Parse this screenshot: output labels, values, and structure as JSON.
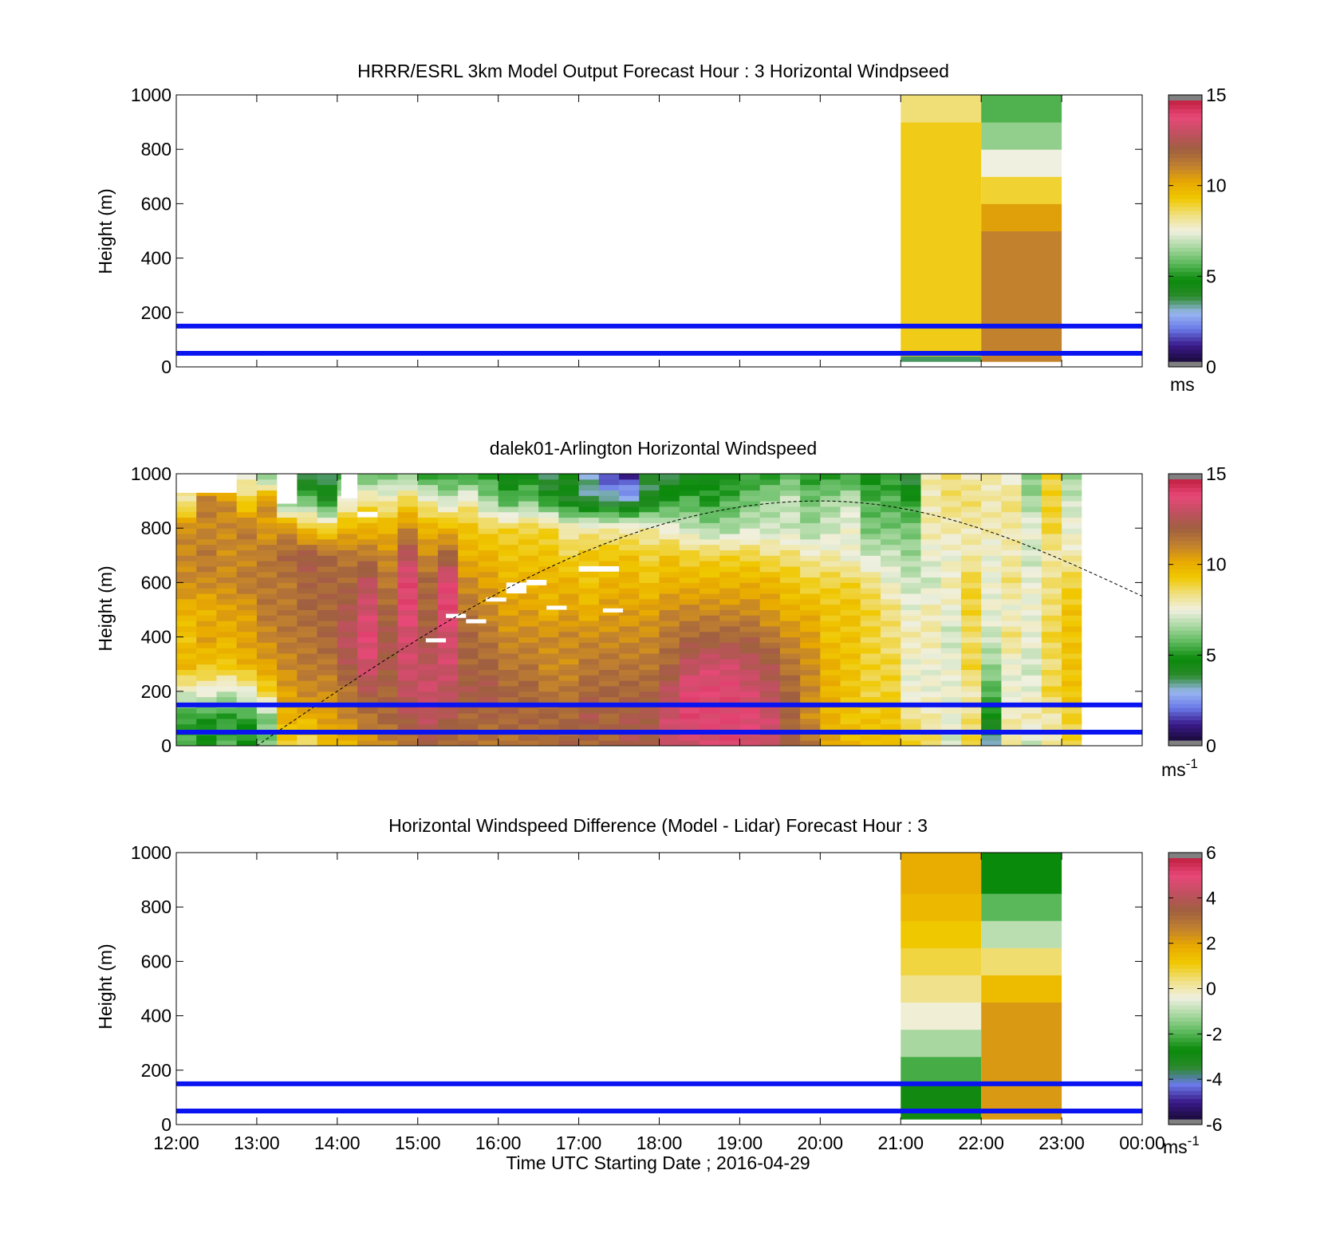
{
  "figure": {
    "xlabel": "Time UTC  Starting Date ; 2016-04-29",
    "x_ticks": [
      "12:00",
      "13:00",
      "14:00",
      "15:00",
      "16:00",
      "17:00",
      "18:00",
      "19:00",
      "20:00",
      "21:00",
      "22:00",
      "23:00",
      "00:00"
    ],
    "y_ticks": [
      "0",
      "200",
      "400",
      "600",
      "800",
      "1000"
    ],
    "ylabel": "Height (m)",
    "reference_heights_m": [
      50,
      150
    ],
    "reference_line_color": "#0a14f0"
  },
  "colormaps": {
    "speed": [
      "#1a0a3a",
      "#3a1a8a",
      "#6a7ae8",
      "#9ab8f0",
      "#2a8a2a",
      "#0a8a0a",
      "#5ab85a",
      "#a8d8a0",
      "#f0f0e0",
      "#f0e080",
      "#f0c800",
      "#e8a800",
      "#c08030",
      "#a06040",
      "#c05060",
      "#e84878",
      "#c02040"
    ],
    "diff": [
      "#1a0a3a",
      "#3a1a8a",
      "#6a7ae8",
      "#2a8a2a",
      "#0a8a0a",
      "#5ab85a",
      "#a8d8a0",
      "#f0f0e0",
      "#f0e080",
      "#f0c800",
      "#e8a800",
      "#c08030",
      "#a06040",
      "#c05060",
      "#e84878",
      "#c02040"
    ]
  },
  "chart_data": [
    {
      "type": "heatmap",
      "title": "HRRR/ESRL 3km Model Output   Forecast Hour : 3 Horizontal Windpseed",
      "xlabel": "",
      "ylabel": "Height (m)",
      "xlim": [
        12,
        24
      ],
      "ylim": [
        0,
        1000
      ],
      "colorbar": {
        "ticks": [
          "0",
          "5",
          "10",
          "15"
        ],
        "range": [
          0,
          15
        ],
        "unit": "ms",
        "unit_sup": ""
      },
      "columns": [
        {
          "x_start": 21,
          "x_end": 22,
          "cells": [
            {
              "h0": 20,
              "h1": 40,
              "v": 3.5
            },
            {
              "h0": 40,
              "h1": 120,
              "v": 9.2
            },
            {
              "h0": 120,
              "h1": 900,
              "v": 9.2
            },
            {
              "h0": 900,
              "h1": 1000,
              "v": 8.5
            }
          ]
        },
        {
          "x_start": 22,
          "x_end": 23,
          "cells": [
            {
              "h0": 20,
              "h1": 500,
              "v": 11.2
            },
            {
              "h0": 500,
              "h1": 600,
              "v": 10.5
            },
            {
              "h0": 600,
              "h1": 700,
              "v": 9.0
            },
            {
              "h0": 700,
              "h1": 800,
              "v": 7.5
            },
            {
              "h0": 800,
              "h1": 900,
              "v": 6.3
            },
            {
              "h0": 900,
              "h1": 1000,
              "v": 5.5
            }
          ]
        }
      ]
    },
    {
      "type": "heatmap",
      "title": "dalek01-Arlington  Horizontal Windspeed",
      "xlabel": "",
      "ylabel": "Height (m)",
      "xlim": [
        12,
        24
      ],
      "ylim": [
        0,
        1000
      ],
      "colorbar": {
        "ticks": [
          "0",
          "5",
          "10",
          "15"
        ],
        "range": [
          0,
          15
        ],
        "unit": "ms",
        "unit_sup": "-1"
      },
      "time_step_h": 0.25,
      "x_start": 12.0,
      "heights": [
        0,
        100,
        200,
        300,
        400,
        500,
        600,
        700,
        800,
        900,
        1000
      ],
      "profiles": [
        [
          5.5,
          5.0,
          7.5,
          10.0,
          9.5,
          10.0,
          11.0,
          11.0,
          11.0,
          8.0,
          10.0
        ],
        [
          5.0,
          4.8,
          7.5,
          9.5,
          10.5,
          10.0,
          11.0,
          11.5,
          11.0,
          11.5,
          7.5
        ],
        [
          5.5,
          5.0,
          7.0,
          9.5,
          10.0,
          10.5,
          11.0,
          11.0,
          11.0,
          11.0,
          7.5
        ],
        [
          5.0,
          5.0,
          7.5,
          10.0,
          10.5,
          10.5,
          11.5,
          11.0,
          11.5,
          9.0,
          7.5
        ],
        [
          6.0,
          6.0,
          9.0,
          10.5,
          11.0,
          11.5,
          11.5,
          11.5,
          10.5,
          11.0,
          5.5
        ],
        [
          9.0,
          10.0,
          10.5,
          11.0,
          11.5,
          11.5,
          11.5,
          12.0,
          11.0,
          5.5,
          5.0
        ],
        [
          8.5,
          10.0,
          11.0,
          11.5,
          11.5,
          12.0,
          12.0,
          12.5,
          9.5,
          6.0,
          3.0
        ],
        [
          9.5,
          10.5,
          11.0,
          11.5,
          12.0,
          12.0,
          12.0,
          12.0,
          9.0,
          4.5,
          3.5
        ],
        [
          10.0,
          11.0,
          11.5,
          12.5,
          13.0,
          12.5,
          12.0,
          11.5,
          10.0,
          7.5,
          5.0
        ],
        [
          10.5,
          11.5,
          12.5,
          13.5,
          14.0,
          13.5,
          13.0,
          11.5,
          10.0,
          8.5,
          5.5
        ],
        [
          11.0,
          12.0,
          12.0,
          12.5,
          12.5,
          12.0,
          11.5,
          11.0,
          10.0,
          8.0,
          6.0
        ],
        [
          11.5,
          12.5,
          13.0,
          13.5,
          13.5,
          14.0,
          14.0,
          13.0,
          11.0,
          9.0,
          6.0
        ],
        [
          12.0,
          13.0,
          13.5,
          13.0,
          12.5,
          12.0,
          12.0,
          11.0,
          10.0,
          8.0,
          5.0
        ],
        [
          12.0,
          12.5,
          13.0,
          13.5,
          13.5,
          14.0,
          14.0,
          12.0,
          10.0,
          7.0,
          5.0
        ],
        [
          11.5,
          12.0,
          12.5,
          12.0,
          12.0,
          11.5,
          11.0,
          10.0,
          9.5,
          8.0,
          5.0
        ],
        [
          11.5,
          12.0,
          12.5,
          12.0,
          11.5,
          11.0,
          10.5,
          10.0,
          9.0,
          6.5,
          5.0
        ],
        [
          11.5,
          12.0,
          12.0,
          11.5,
          11.0,
          10.5,
          10.0,
          9.5,
          9.0,
          5.5,
          4.0
        ],
        [
          11.5,
          12.0,
          12.0,
          11.5,
          11.0,
          10.5,
          10.0,
          9.5,
          9.0,
          6.0,
          4.5
        ],
        [
          12.0,
          12.0,
          11.5,
          11.0,
          11.0,
          10.0,
          10.0,
          9.5,
          9.0,
          5.0,
          3.0
        ],
        [
          12.0,
          12.0,
          11.5,
          11.0,
          11.0,
          10.5,
          10.0,
          9.0,
          8.0,
          4.0,
          4.5
        ],
        [
          12.0,
          12.5,
          12.0,
          11.5,
          11.0,
          10.0,
          9.5,
          9.5,
          8.0,
          3.5,
          3.0
        ],
        [
          12.0,
          12.0,
          12.0,
          11.5,
          11.0,
          10.5,
          10.0,
          9.5,
          8.0,
          3.5,
          1.0
        ],
        [
          12.5,
          12.5,
          12.0,
          11.5,
          11.0,
          10.5,
          10.0,
          9.5,
          8.0,
          3.0,
          1.0
        ],
        [
          12.5,
          12.5,
          12.0,
          11.5,
          11.0,
          10.5,
          9.5,
          9.0,
          8.0,
          4.0,
          3.5
        ],
        [
          13.0,
          13.5,
          13.0,
          12.0,
          11.5,
          11.0,
          10.0,
          9.5,
          7.5,
          5.0,
          3.5
        ],
        [
          13.5,
          14.0,
          14.0,
          13.0,
          12.0,
          11.0,
          10.0,
          9.0,
          7.0,
          5.5,
          4.0
        ],
        [
          13.5,
          14.0,
          14.0,
          13.5,
          12.0,
          11.0,
          10.0,
          9.0,
          6.5,
          5.0,
          4.5
        ],
        [
          14.0,
          14.0,
          14.0,
          13.5,
          12.0,
          11.0,
          10.0,
          9.0,
          6.5,
          5.5,
          4.5
        ],
        [
          13.5,
          14.0,
          13.5,
          13.0,
          12.0,
          11.0,
          10.0,
          9.0,
          7.0,
          6.0,
          5.0
        ],
        [
          13.0,
          13.5,
          13.0,
          12.5,
          11.5,
          10.5,
          10.0,
          8.5,
          7.0,
          6.5,
          5.0
        ],
        [
          12.5,
          12.0,
          12.0,
          11.5,
          11.0,
          10.0,
          9.5,
          8.5,
          7.0,
          7.0,
          5.5
        ],
        [
          11.5,
          11.0,
          11.0,
          11.0,
          10.5,
          10.0,
          9.0,
          8.0,
          6.5,
          6.0,
          5.0
        ],
        [
          10.5,
          10.0,
          10.0,
          10.0,
          9.5,
          9.5,
          9.0,
          8.0,
          7.0,
          6.5,
          5.0
        ],
        [
          10.0,
          9.5,
          9.5,
          9.5,
          9.5,
          9.5,
          9.0,
          7.5,
          7.5,
          7.0,
          5.0
        ],
        [
          9.5,
          9.5,
          9.0,
          9.0,
          9.0,
          9.0,
          8.5,
          7.0,
          6.0,
          5.5,
          4.5
        ],
        [
          10.0,
          9.5,
          9.0,
          9.0,
          8.5,
          8.5,
          7.5,
          7.0,
          6.0,
          5.5,
          5.0
        ],
        [
          9.0,
          8.5,
          7.5,
          7.5,
          8.0,
          7.5,
          7.0,
          6.5,
          6.0,
          5.0,
          3.5
        ],
        [
          9.0,
          8.0,
          7.5,
          7.5,
          8.0,
          8.0,
          7.0,
          7.5,
          8.0,
          8.0,
          8.0
        ],
        [
          7.0,
          7.5,
          7.5,
          7.5,
          7.0,
          7.5,
          8.0,
          7.5,
          8.0,
          8.5,
          8.5
        ],
        [
          9.0,
          8.5,
          8.0,
          9.0,
          8.5,
          9.0,
          9.0,
          8.0,
          8.0,
          8.5,
          8.0
        ],
        [
          3.0,
          4.5,
          5.5,
          6.5,
          7.0,
          7.5,
          7.5,
          7.5,
          8.0,
          8.0,
          8.0
        ],
        [
          8.0,
          8.0,
          7.5,
          7.5,
          8.5,
          7.5,
          8.5,
          8.0,
          8.0,
          8.5,
          7.5
        ],
        [
          7.0,
          8.0,
          7.5,
          7.0,
          7.5,
          7.5,
          7.5,
          7.0,
          7.5,
          6.5,
          6.0
        ],
        [
          8.0,
          8.0,
          9.0,
          8.5,
          9.0,
          8.5,
          8.5,
          8.0,
          9.0,
          9.0,
          9.0
        ],
        [
          9.0,
          9.0,
          9.5,
          9.5,
          9.5,
          9.5,
          9.0,
          8.0,
          7.5,
          7.0,
          6.5
        ]
      ],
      "white_gaps": [
        {
          "t0": 13.25,
          "t1": 13.5,
          "h0": 890,
          "h1": 1000
        },
        {
          "t0": 12.0,
          "t1": 12.75,
          "h0": 930,
          "h1": 1000
        },
        {
          "t0": 14.05,
          "t1": 14.25,
          "h0": 910,
          "h1": 1000
        },
        {
          "t0": 14.25,
          "t1": 14.5,
          "h0": 840,
          "h1": 860
        },
        {
          "t0": 15.1,
          "t1": 15.35,
          "h0": 380,
          "h1": 395
        },
        {
          "t0": 15.35,
          "t1": 15.6,
          "h0": 470,
          "h1": 485
        },
        {
          "t0": 15.6,
          "t1": 15.85,
          "h0": 450,
          "h1": 465
        },
        {
          "t0": 15.85,
          "t1": 16.1,
          "h0": 530,
          "h1": 545
        },
        {
          "t0": 16.1,
          "t1": 16.35,
          "h0": 560,
          "h1": 600
        },
        {
          "t0": 16.35,
          "t1": 16.6,
          "h0": 590,
          "h1": 610
        },
        {
          "t0": 16.6,
          "t1": 16.85,
          "h0": 500,
          "h1": 515
        },
        {
          "t0": 17.3,
          "t1": 17.55,
          "h0": 490,
          "h1": 505
        },
        {
          "t0": 17.0,
          "t1": 17.5,
          "h0": 640,
          "h1": 660
        }
      ],
      "daytime_curve": {
        "t_start": 13.0,
        "t_peak": 20.0,
        "t_end": 24.0,
        "h_peak": 900,
        "h_end": 550
      }
    },
    {
      "type": "heatmap",
      "title": "Horizontal Windspeed Difference (Model - Lidar) Forecast Hour : 3",
      "xlabel": "Time UTC  Starting Date ; 2016-04-29",
      "ylabel": "Height (m)",
      "xlim": [
        12,
        24
      ],
      "ylim": [
        0,
        1000
      ],
      "colorbar": {
        "ticks": [
          "-6",
          "-4",
          "-2",
          "0",
          "2",
          "4",
          "6"
        ],
        "range": [
          -6,
          6
        ],
        "unit": "ms",
        "unit_sup": "-1"
      },
      "columns": [
        {
          "x_start": 21,
          "x_end": 22,
          "cells": [
            {
              "h0": 20,
              "h1": 150,
              "v": -3.0
            },
            {
              "h0": 150,
              "h1": 250,
              "v": -2.2
            },
            {
              "h0": 250,
              "h1": 350,
              "v": -1.2
            },
            {
              "h0": 350,
              "h1": 450,
              "v": -0.3
            },
            {
              "h0": 450,
              "h1": 550,
              "v": 0.3
            },
            {
              "h0": 550,
              "h1": 650,
              "v": 0.8
            },
            {
              "h0": 650,
              "h1": 750,
              "v": 1.2
            },
            {
              "h0": 750,
              "h1": 850,
              "v": 1.6
            },
            {
              "h0": 850,
              "h1": 1000,
              "v": 1.9
            }
          ]
        },
        {
          "x_start": 22,
          "x_end": 23,
          "cells": [
            {
              "h0": 20,
              "h1": 450,
              "v": 2.3
            },
            {
              "h0": 450,
              "h1": 550,
              "v": 1.5
            },
            {
              "h0": 550,
              "h1": 650,
              "v": 0.5
            },
            {
              "h0": 650,
              "h1": 750,
              "v": -1.0
            },
            {
              "h0": 750,
              "h1": 850,
              "v": -2.0
            },
            {
              "h0": 850,
              "h1": 1000,
              "v": -2.8
            }
          ]
        }
      ]
    }
  ]
}
